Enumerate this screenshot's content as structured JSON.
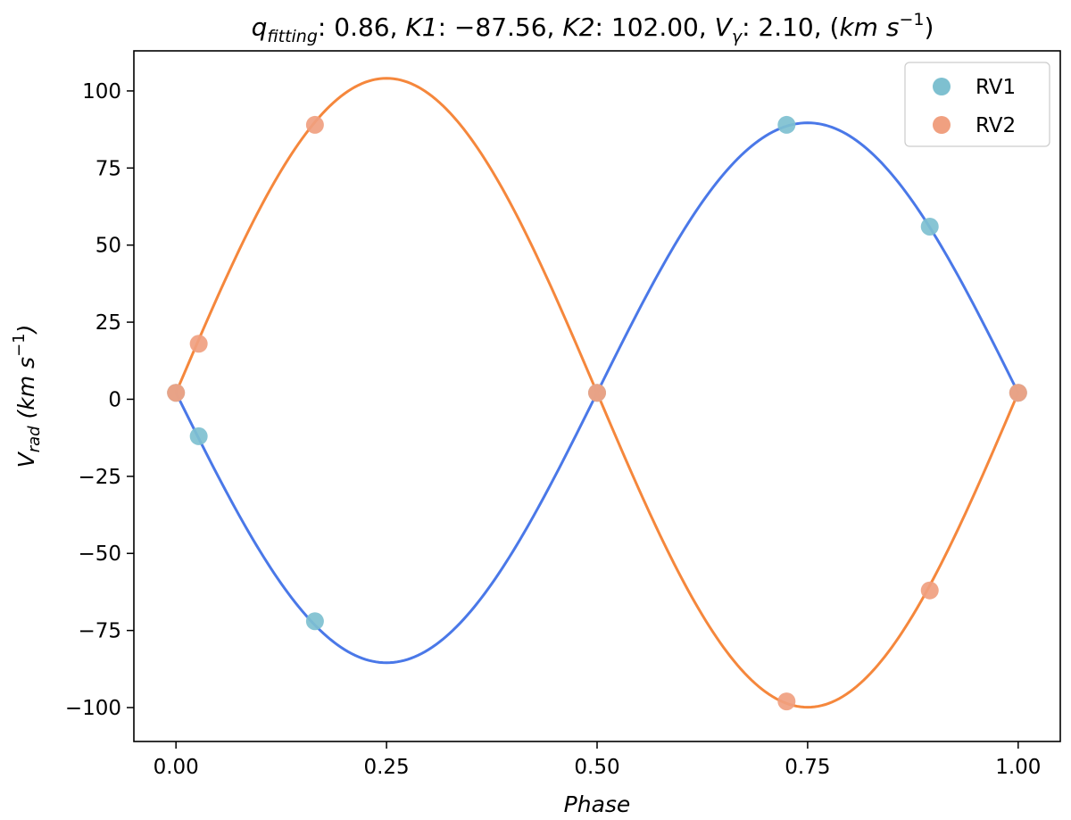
{
  "chart_data": {
    "type": "scatter",
    "title": "q_fitting: 0.86, K1: −87.56, K2: 102.00, V_γ: 2.10, (km s⁻¹)",
    "title_parts": {
      "q_main": "q",
      "q_sub": "fitting",
      "q_value": ": 0.86, ",
      "k1_label": "K1",
      "k1_value": ": −87.56, ",
      "k2_label": "K2",
      "k2_value": ": 102.00, ",
      "v_main": "V",
      "v_sub": "γ",
      "v_value": ": 2.10, (",
      "unit": "km s",
      "unit_exp": "−1",
      "close": ")"
    },
    "xlabel": "Phase",
    "ylabel": "V_rad (km s⁻¹)",
    "ylabel_parts": {
      "main": "V",
      "sub": "rad",
      "unit": " (km s",
      "exp": "−1",
      "close": ")"
    },
    "xlim": [
      -0.05,
      1.05
    ],
    "ylim": [
      -111,
      113
    ],
    "xticks": [
      0.0,
      0.25,
      0.5,
      0.75,
      1.0
    ],
    "xtick_labels": [
      "0.00",
      "0.25",
      "0.50",
      "0.75",
      "1.00"
    ],
    "yticks": [
      -100,
      -75,
      -50,
      -25,
      0,
      25,
      50,
      75,
      100
    ],
    "ytick_labels": [
      "−100",
      "−75",
      "−50",
      "−25",
      "0",
      "25",
      "50",
      "75",
      "100"
    ],
    "legend_position": "top-right",
    "series": [
      {
        "name": "RV1",
        "color": "#7ec0d0",
        "x": [
          0.0,
          0.027,
          0.165,
          0.5,
          0.725,
          0.895,
          1.0
        ],
        "values": [
          2.1,
          -12,
          -72,
          2.1,
          89,
          56,
          2.1
        ]
      },
      {
        "name": "RV2",
        "color": "#f0a080",
        "x": [
          0.0,
          0.027,
          0.165,
          0.5,
          0.725,
          0.895,
          1.0
        ],
        "values": [
          2.1,
          18,
          89,
          2.1,
          -98,
          -62,
          2.1
        ]
      }
    ],
    "fit_curves": [
      {
        "series": "RV1",
        "color": "#4a78e8",
        "amplitude": -87.56,
        "offset": 2.1
      },
      {
        "series": "RV2",
        "color": "#f5873c",
        "amplitude": 102.0,
        "offset": 2.1
      }
    ]
  }
}
